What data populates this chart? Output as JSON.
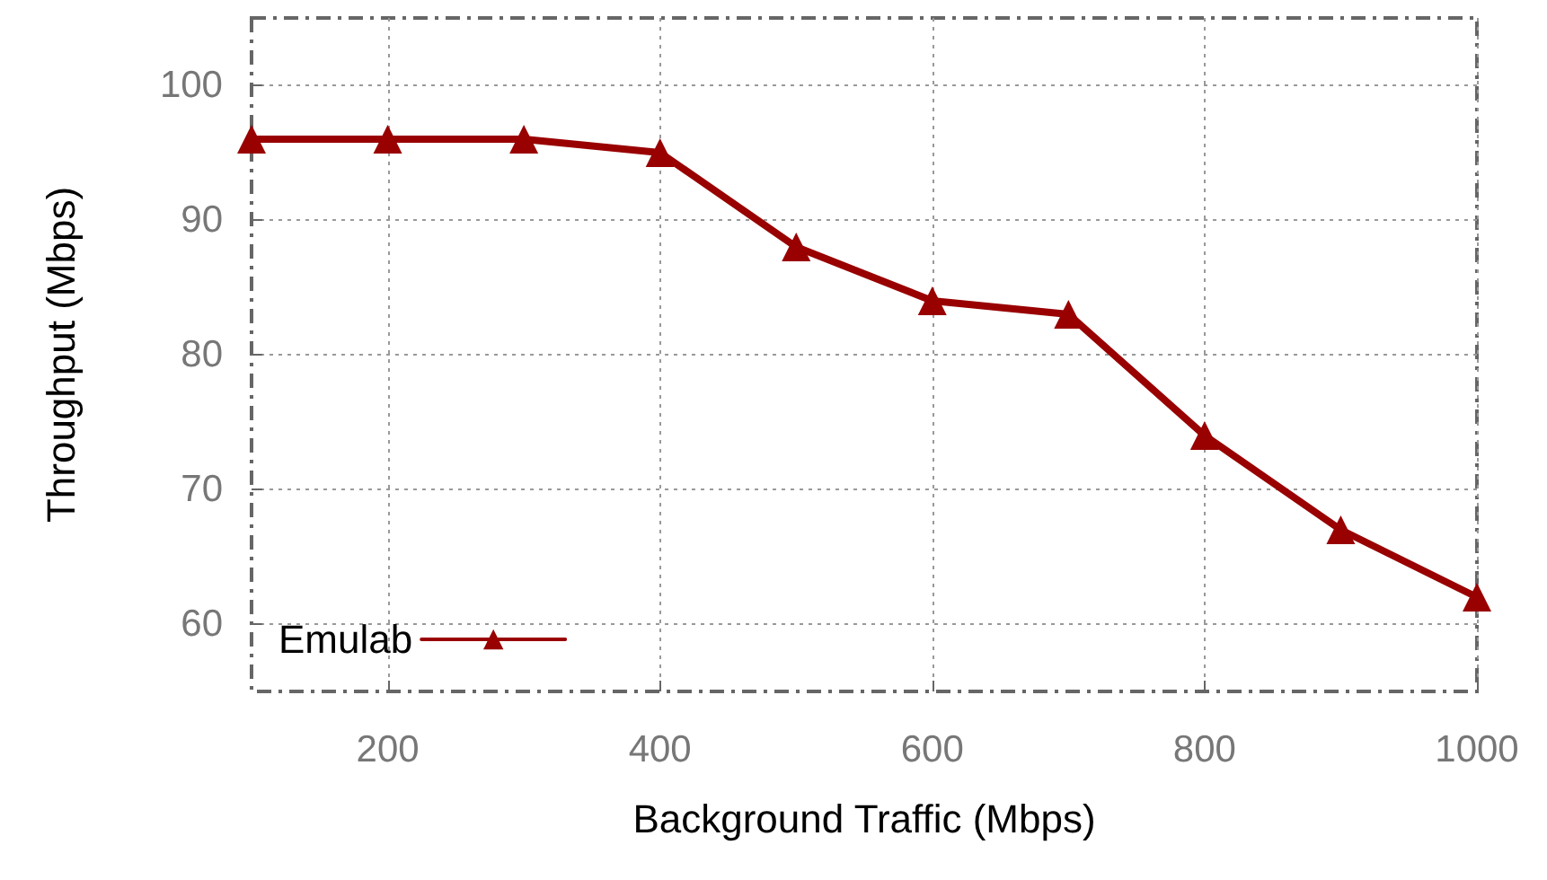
{
  "chart_data": {
    "type": "line",
    "xlabel": "Background Traffic (Mbps)",
    "ylabel": "Throughput (Mbps)",
    "x": [
      100,
      200,
      300,
      400,
      500,
      600,
      700,
      800,
      900,
      1000
    ],
    "series": [
      {
        "name": "Emulab",
        "color": "#990000",
        "values": [
          96,
          96,
          96,
          95,
          88,
          84,
          83,
          74,
          67,
          62
        ]
      }
    ],
    "xlim": [
      100,
      1000
    ],
    "xticks": [
      200,
      400,
      600,
      800,
      1000
    ],
    "ylim": [
      55,
      105
    ],
    "yticks": [
      60,
      70,
      80,
      90,
      100
    ],
    "grid": true,
    "legend": "bottom left",
    "marker": "triangle",
    "line_style": "solid"
  }
}
